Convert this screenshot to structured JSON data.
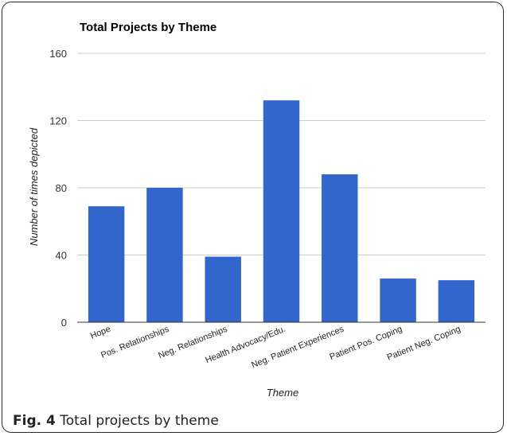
{
  "chart_data": {
    "type": "bar",
    "title": "Total Projects by Theme",
    "xlabel": "Theme",
    "ylabel": "Number of times depicted",
    "categories": [
      "Hope",
      "Pos. Relationships",
      "Neg. Relationships",
      "Health Advocacy/Edu.",
      "Neg. Patient Experiences",
      "Patient Pos. Coping",
      "Patient Neg. Coping"
    ],
    "values": [
      69,
      80,
      39,
      132,
      88,
      26,
      25
    ],
    "yticks": [
      "0",
      "40",
      "80",
      "120",
      "160"
    ],
    "ylim": [
      0,
      160
    ],
    "grid": true,
    "bar_color": "#3366cc"
  },
  "caption": {
    "label": "Fig. 4",
    "text": "Total projects by theme"
  }
}
